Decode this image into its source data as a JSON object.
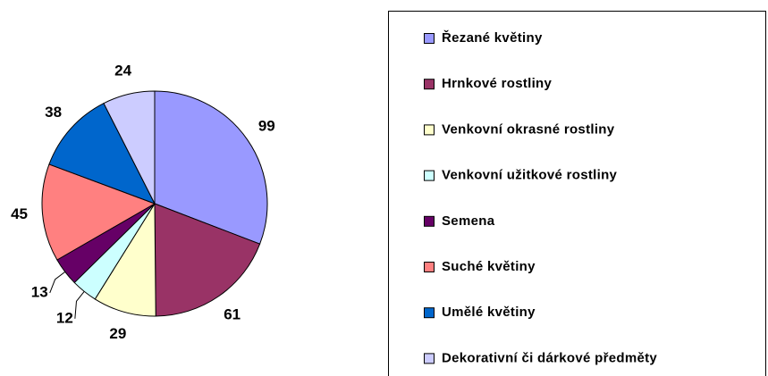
{
  "chart_data": {
    "type": "pie",
    "categories": [
      "Řezané květiny",
      "Hrnkové rostliny",
      "Venkovní okrasné rostliny",
      "Venkovní užitkové rostliny",
      "Semena",
      "Suché květiny",
      "Umělé květiny",
      "Dekorativní či dárkové předměty"
    ],
    "values": [
      99,
      61,
      29,
      12,
      13,
      45,
      38,
      24
    ],
    "colors": [
      "#9999ff",
      "#993366",
      "#ffffcc",
      "#ccffff",
      "#660066",
      "#ff8080",
      "#0066cc",
      "#ccccff"
    ],
    "legend": "right"
  }
}
